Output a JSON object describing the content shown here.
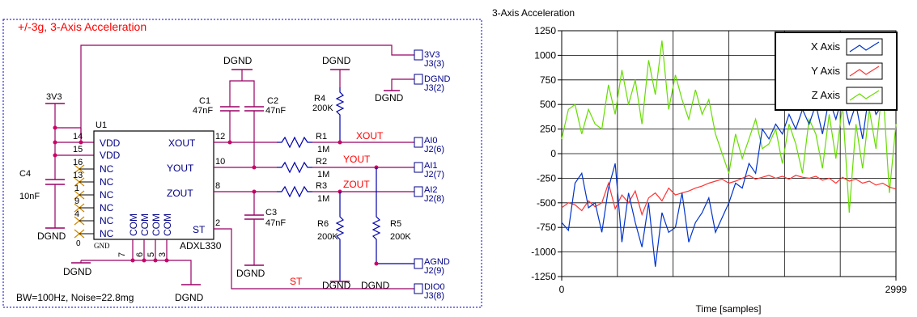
{
  "schematic": {
    "title": "+/-3g, 3-Axis Acceleration",
    "footer": "BW=100Hz, Noise=22.8mg",
    "chip": {
      "ref": "U1",
      "part": "ADXL330",
      "pins_left": [
        "VDD",
        "VDD",
        "NC",
        "NC",
        "NC",
        "NC",
        "NC",
        "NC"
      ],
      "pins_left_num": [
        "14",
        "15",
        "16",
        "13",
        "1",
        "9",
        "4",
        "0"
      ],
      "pins_right": [
        "XOUT",
        "YOUT",
        "ZOUT",
        "ST"
      ],
      "pins_right_num": [
        "12",
        "10",
        "8",
        "2"
      ],
      "pins_bottom": [
        "COM",
        "COM",
        "COM",
        "COM"
      ],
      "pins_bottom_num": [
        "7",
        "6",
        "5",
        "3"
      ],
      "gnd_label": "GND"
    },
    "supply": "3V3",
    "ground": "DGND",
    "components": {
      "c1": {
        "ref": "C1",
        "value": "47nF"
      },
      "c2": {
        "ref": "C2",
        "value": "47nF"
      },
      "c3": {
        "ref": "C3",
        "value": "47nF"
      },
      "c4": {
        "ref": "C4",
        "value": "10nF"
      },
      "r1": {
        "ref": "R1",
        "value": "1M"
      },
      "r2": {
        "ref": "R2",
        "value": "1M"
      },
      "r3": {
        "ref": "R3",
        "value": "1M"
      },
      "r4": {
        "ref": "R4",
        "value": "200K"
      },
      "r5": {
        "ref": "R5",
        "value": "200K"
      },
      "r6": {
        "ref": "R6",
        "value": "200K"
      }
    },
    "nets": {
      "xout": "XOUT",
      "yout": "YOUT",
      "zout": "ZOUT",
      "st": "ST"
    },
    "connectors": [
      {
        "name": "3V3",
        "pin": "J3(3)"
      },
      {
        "name": "DGND",
        "pin": "J3(2)"
      },
      {
        "name": "AI0",
        "pin": "J2(6)"
      },
      {
        "name": "AI1",
        "pin": "J2(7)"
      },
      {
        "name": "AI2",
        "pin": "J2(8)"
      },
      {
        "name": "AGND",
        "pin": "J2(9)"
      },
      {
        "name": "DIO0",
        "pin": "J3(8)"
      }
    ],
    "colors": {
      "wire": "#000000",
      "node": "#cc0066",
      "rail": "#990066",
      "title": "#ff0000",
      "net": "#ff0000",
      "resistor": "#0000aa",
      "text_blue": "#000088",
      "border": "#0000cc"
    }
  },
  "chart_data": {
    "type": "line",
    "title": "3-Axis Acceleration",
    "xlabel": "Time [samples]",
    "ylabel": "",
    "xlim": [
      0,
      2999
    ],
    "ylim": [
      -1250,
      1250
    ],
    "xticks": [
      "0",
      "2999"
    ],
    "yticks": [
      "1250",
      "1000",
      "750",
      "500",
      "250",
      "0",
      "-250",
      "-500",
      "-750",
      "-1000",
      "-1250"
    ],
    "grid": true,
    "legend_position": "top-right",
    "series": [
      {
        "name": "X Axis",
        "color": "#0033cc",
        "x": [
          0,
          60,
          120,
          180,
          240,
          300,
          360,
          420,
          480,
          540,
          600,
          660,
          720,
          780,
          840,
          900,
          960,
          1020,
          1080,
          1140,
          1200,
          1260,
          1320,
          1380,
          1440,
          1500,
          1560,
          1620,
          1680,
          1740,
          1800,
          1860,
          1920,
          1980,
          2040,
          2100,
          2160,
          2220,
          2280,
          2340,
          2400,
          2460,
          2520,
          2580,
          2640,
          2700,
          2760,
          2820,
          2880,
          2940,
          2999
        ],
        "y": [
          -700,
          -780,
          -300,
          -200,
          -550,
          -500,
          -800,
          -350,
          -100,
          -900,
          -400,
          -700,
          -950,
          -500,
          -1150,
          -600,
          -800,
          -750,
          -400,
          -900,
          -700,
          -600,
          -450,
          -800,
          -650,
          -500,
          -300,
          -350,
          -100,
          -200,
          250,
          150,
          300,
          200,
          400,
          250,
          450,
          300,
          500,
          200,
          550,
          350,
          600,
          300,
          500,
          150,
          650,
          400,
          500,
          450,
          550
        ]
      },
      {
        "name": "Y Axis",
        "color": "#ff3333",
        "x": [
          0,
          60,
          120,
          180,
          240,
          300,
          360,
          420,
          480,
          540,
          600,
          660,
          720,
          780,
          840,
          900,
          960,
          1020,
          1080,
          1140,
          1200,
          1260,
          1320,
          1380,
          1440,
          1500,
          1560,
          1620,
          1680,
          1740,
          1800,
          1860,
          1920,
          1980,
          2040,
          2100,
          2160,
          2220,
          2280,
          2340,
          2400,
          2460,
          2520,
          2580,
          2640,
          2700,
          2760,
          2820,
          2880,
          2940,
          2999
        ],
        "y": [
          -550,
          -500,
          -520,
          -580,
          -480,
          -540,
          -500,
          -300,
          -560,
          -420,
          -500,
          -380,
          -620,
          -450,
          -400,
          -480,
          -350,
          -420,
          -400,
          -380,
          -350,
          -330,
          -300,
          -280,
          -260,
          -300,
          -280,
          -250,
          -220,
          -260,
          -240,
          -220,
          -250,
          -230,
          -260,
          -220,
          -240,
          -250,
          -230,
          -270,
          -250,
          -300,
          -240,
          -280,
          -260,
          -300,
          -280,
          -320,
          -300,
          -340,
          -360
        ]
      },
      {
        "name": "Z Axis",
        "color": "#66dd00",
        "x": [
          0,
          60,
          120,
          180,
          240,
          300,
          360,
          420,
          480,
          540,
          600,
          660,
          720,
          780,
          840,
          900,
          960,
          1020,
          1080,
          1140,
          1200,
          1260,
          1320,
          1380,
          1440,
          1500,
          1560,
          1620,
          1680,
          1740,
          1800,
          1860,
          1920,
          1980,
          2040,
          2100,
          2160,
          2220,
          2280,
          2340,
          2400,
          2460,
          2520,
          2580,
          2640,
          2700,
          2760,
          2820,
          2880,
          2940,
          2999
        ],
        "y": [
          150,
          450,
          500,
          200,
          450,
          300,
          250,
          700,
          400,
          850,
          500,
          750,
          300,
          950,
          600,
          1150,
          450,
          800,
          550,
          350,
          650,
          400,
          550,
          200,
          0,
          -200,
          200,
          -50,
          150,
          350,
          50,
          100,
          250,
          -100,
          300,
          100,
          -200,
          350,
          200,
          -150,
          400,
          -50,
          500,
          -600,
          300,
          -150,
          450,
          50,
          700,
          -400,
          300
        ]
      }
    ]
  }
}
